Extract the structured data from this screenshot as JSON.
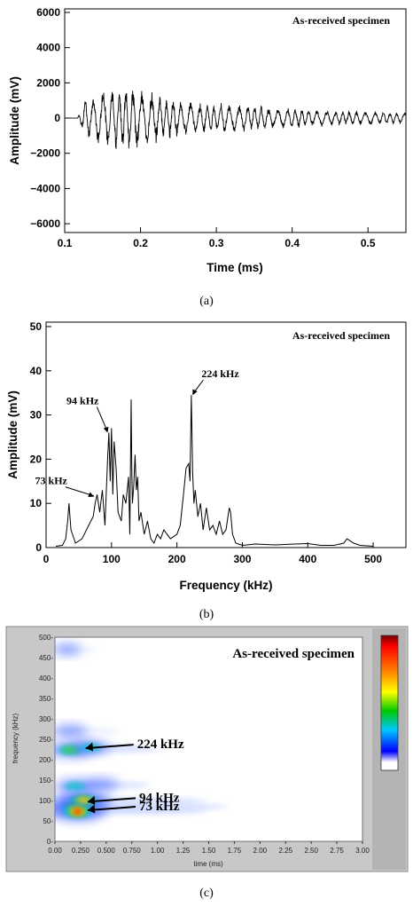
{
  "captions": {
    "a": "(a)",
    "b": "(b)",
    "c": "(c)"
  },
  "chart_data": [
    {
      "type": "line",
      "annotation": "As-received specimen",
      "xlabel": "Time (ms)",
      "ylabel": "Amplitude (mV)",
      "xlim": [
        0.1,
        0.55
      ],
      "ylim": [
        -6500,
        6200
      ],
      "xticks": [
        0.1,
        0.2,
        0.3,
        0.4,
        0.5
      ],
      "xtick_labels": [
        "0.1",
        "0.2",
        "0.3",
        "0.4",
        "0.5"
      ],
      "yticks": [
        6000,
        4000,
        2000,
        0,
        -2000,
        -4000,
        -6000
      ],
      "ytick_labels": [
        "6000",
        "4000",
        "2000",
        "0",
        "−2000",
        "−4000",
        "−6000"
      ],
      "envelope": {
        "x": [
          0.1,
          0.117,
          0.125,
          0.15,
          0.2,
          0.22,
          0.25,
          0.3,
          0.35,
          0.4,
          0.45,
          0.5,
          0.55
        ],
        "amplitude": [
          0,
          0,
          900,
          1700,
          1600,
          1300,
          900,
          800,
          650,
          500,
          400,
          350,
          300
        ]
      }
    },
    {
      "type": "line",
      "annotation": "As-received specimen",
      "xlabel": "Frequency (kHz)",
      "ylabel": "Amplitude (mV)",
      "xlim": [
        0,
        550
      ],
      "ylim": [
        0,
        51
      ],
      "xticks": [
        0,
        100,
        200,
        300,
        400,
        500
      ],
      "xtick_labels": [
        "0",
        "100",
        "200",
        "300",
        "400",
        "500"
      ],
      "yticks": [
        0,
        10,
        20,
        30,
        40,
        50
      ],
      "ytick_labels": [
        "0",
        "10",
        "20",
        "30",
        "40",
        "50"
      ],
      "points": {
        "x": [
          15,
          25,
          30,
          33,
          35,
          38,
          45,
          55,
          65,
          72,
          75,
          78,
          82,
          86,
          90,
          94,
          96,
          98,
          100,
          102,
          104,
          107,
          110,
          115,
          118,
          122,
          126,
          128,
          130,
          131,
          132,
          134,
          136,
          138,
          140,
          142,
          145,
          150,
          155,
          160,
          165,
          170,
          175,
          180,
          190,
          200,
          205,
          210,
          214,
          218,
          220,
          222,
          224,
          226,
          228,
          232,
          236,
          240,
          245,
          250,
          255,
          260,
          265,
          270,
          275,
          280,
          282,
          285,
          290,
          300,
          320,
          350,
          380,
          400,
          420,
          440,
          455,
          460,
          465,
          470,
          480,
          500
        ],
        "y": [
          0.3,
          0.5,
          2,
          6,
          10,
          4,
          1,
          2,
          5,
          7,
          10,
          12,
          8,
          13,
          5,
          20,
          26,
          15,
          27,
          12,
          24,
          18,
          8,
          6,
          12,
          10,
          16,
          3,
          33.5,
          18,
          10,
          14,
          21,
          13,
          16,
          6,
          8,
          3,
          6,
          2,
          1,
          3,
          2,
          4,
          2,
          3,
          5,
          12,
          18,
          19,
          15,
          34.5,
          17,
          10,
          13,
          7,
          10,
          4,
          9,
          4,
          5,
          3,
          6,
          3,
          4,
          9,
          8,
          3,
          1,
          0.5,
          0.8,
          0.6,
          0.8,
          0.9,
          0.5,
          0.5,
          1,
          2,
          1.5,
          1,
          0.5,
          0.3
        ]
      },
      "labels": [
        {
          "text": "224 kHz",
          "x": 224,
          "y": 34.5
        },
        {
          "text": "94 kHz",
          "x": 94,
          "y": 26
        },
        {
          "text": "73 kHz",
          "x": 73,
          "y": 11.5
        }
      ]
    },
    {
      "type": "heatmap",
      "annotation": "As-received specimen",
      "xlabel": "time (ms)",
      "ylabel": "frequency (kHz)",
      "xlim": [
        0,
        3
      ],
      "ylim": [
        0,
        500
      ],
      "xticks": [
        0,
        0.25,
        0.5,
        0.75,
        1,
        1.25,
        1.5,
        1.75,
        2,
        2.25,
        2.5,
        2.75,
        3
      ],
      "xtick_labels": [
        "0.00",
        "0.250",
        "0.500",
        "0.750",
        "1.00",
        "1.25",
        "1.50",
        "1.75",
        "2.00",
        "2.25",
        "2.50",
        "2.75",
        "3.00"
      ],
      "yticks": [
        0,
        50,
        100,
        150,
        200,
        250,
        300,
        350,
        400,
        450,
        500
      ],
      "ytick_labels": [
        "0-",
        "50-",
        "100-",
        "150-",
        "200-",
        "250-",
        "300-",
        "350-",
        "400-",
        "450-",
        "500-"
      ],
      "blobs": [
        {
          "t": 0.22,
          "f": 85,
          "intensity": 1.0
        },
        {
          "t": 0.28,
          "f": 100,
          "intensity": 0.8
        },
        {
          "t": 0.22,
          "f": 73,
          "intensity": 0.85
        },
        {
          "t": 0.15,
          "f": 224,
          "intensity": 0.55
        },
        {
          "t": 0.35,
          "f": 230,
          "intensity": 0.35
        },
        {
          "t": 0.2,
          "f": 135,
          "intensity": 0.4
        },
        {
          "t": 0.45,
          "f": 140,
          "intensity": 0.25
        },
        {
          "t": 0.15,
          "f": 270,
          "intensity": 0.25
        },
        {
          "t": 0.12,
          "f": 470,
          "intensity": 0.1
        }
      ],
      "labels": [
        {
          "text": "224 kHz",
          "x": 0.3,
          "y": 228
        },
        {
          "text": "94 kHz",
          "x": 0.32,
          "y": 97
        },
        {
          "text": "73 kHz",
          "x": 0.32,
          "y": 76
        }
      ]
    }
  ]
}
